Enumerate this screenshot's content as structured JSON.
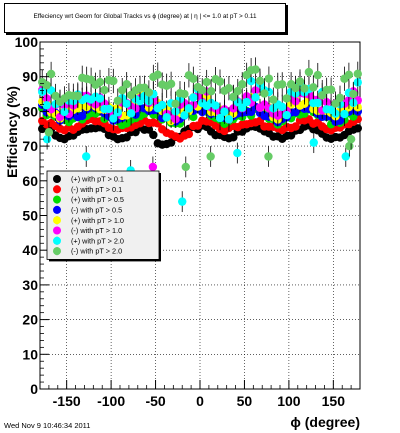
{
  "chart_data": {
    "type": "scatter",
    "title": "Effeciency wrt Geom for Global Tracks vs ϕ (degree) at | η | <= 1.0 at pT > 0.11",
    "xlabel": "ϕ (degree)",
    "ylabel": "Efficiency (%)",
    "xlim": [
      -180,
      180
    ],
    "ylim": [
      0,
      100
    ],
    "x_ticks": [
      -150,
      -100,
      -50,
      0,
      50,
      100,
      150
    ],
    "y_ticks": [
      0,
      10,
      20,
      30,
      40,
      50,
      60,
      70,
      80,
      90,
      100
    ],
    "grid": true,
    "legend_position": "left-middle",
    "series": [
      {
        "name": "(+) with pT > 0.1",
        "color": "#000000",
        "profile": "flat",
        "base": 74,
        "amp": 1.5,
        "noise": 0.6,
        "n": 72,
        "err": 0.8
      },
      {
        "name": "(-) with pT > 0.1",
        "color": "#ff0000",
        "profile": "flat",
        "base": 76,
        "amp": 1.2,
        "noise": 0.7,
        "n": 72,
        "err": 0.8
      },
      {
        "name": "(+) with pT > 0.5",
        "color": "#00dd00",
        "profile": "flat",
        "base": 78.5,
        "amp": 1.5,
        "noise": 1.2,
        "n": 72,
        "err": 1.2
      },
      {
        "name": "(-) with pT > 0.5",
        "color": "#0000ff",
        "profile": "flat",
        "base": 79.5,
        "amp": 1.5,
        "noise": 1.2,
        "n": 72,
        "err": 1.2
      },
      {
        "name": "(+) with pT > 1.0",
        "color": "#ffff00",
        "profile": "flat",
        "base": 81,
        "amp": 2,
        "noise": 2,
        "n": 72,
        "err": 2
      },
      {
        "name": "(-) with pT > 1.0",
        "color": "#ff00ff",
        "profile": "flat",
        "base": 82,
        "amp": 2,
        "noise": 2.5,
        "n": 72,
        "err": 2.5
      },
      {
        "name": "(+) with pT > 2.0",
        "color": "#00ffff",
        "profile": "flat",
        "base": 83,
        "amp": 2.5,
        "noise": 3.5,
        "n": 72,
        "err": 3.5
      },
      {
        "name": "(-) with pT > 2.0",
        "color": "#66cc66",
        "profile": "flat",
        "base": 87,
        "amp": 2,
        "noise": 3.5,
        "n": 72,
        "err": 3.5
      }
    ],
    "outliers": [
      {
        "series": 6,
        "x": -172,
        "y": 72
      },
      {
        "series": 6,
        "x": -128,
        "y": 67
      },
      {
        "series": 6,
        "x": -78,
        "y": 63
      },
      {
        "series": 5,
        "x": -53,
        "y": 64
      },
      {
        "series": 2,
        "x": -49,
        "y": 57
      },
      {
        "series": 6,
        "x": -20,
        "y": 54
      },
      {
        "series": 7,
        "x": -16,
        "y": 64
      },
      {
        "series": 7,
        "x": 12,
        "y": 67
      },
      {
        "series": 6,
        "x": 42,
        "y": 68
      },
      {
        "series": 7,
        "x": 77,
        "y": 67
      },
      {
        "series": 6,
        "x": 128,
        "y": 71
      },
      {
        "series": 6,
        "x": 164,
        "y": 67
      },
      {
        "series": 7,
        "x": 168,
        "y": 70
      },
      {
        "series": 7,
        "x": 170,
        "y": 72
      },
      {
        "series": 7,
        "x": -170,
        "y": 74
      }
    ]
  },
  "footer": {
    "timestamp": "Wed Nov  9 10:46:34 2011"
  }
}
